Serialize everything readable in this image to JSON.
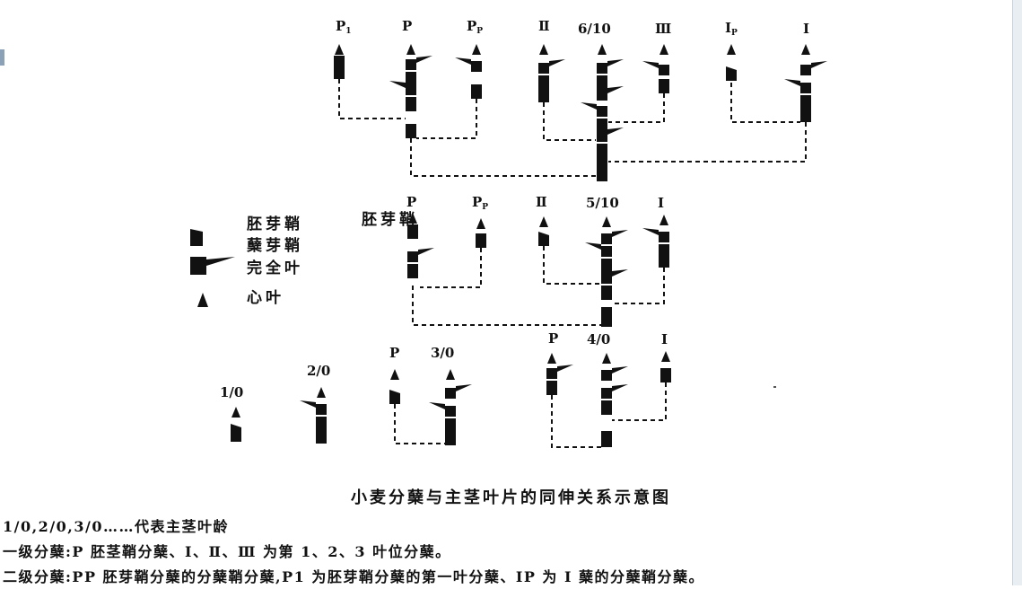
{
  "diagram": {
    "group1_labels": [
      {
        "main": "P",
        "sub": "1"
      },
      {
        "main": "P",
        "sub": ""
      },
      {
        "main": "P",
        "sub": "P"
      },
      {
        "main": "Ⅱ",
        "sub": ""
      },
      {
        "main": "6/10",
        "sub": ""
      },
      {
        "main": "Ⅲ",
        "sub": ""
      },
      {
        "main": "Ⅰ",
        "sub": "P"
      },
      {
        "main": "Ⅰ",
        "sub": ""
      }
    ],
    "group2_labels": [
      {
        "main": "P",
        "sub": ""
      },
      {
        "main": "P",
        "sub": "P"
      },
      {
        "main": "Ⅱ",
        "sub": ""
      },
      {
        "main": "5/10",
        "sub": ""
      },
      {
        "main": "Ⅰ",
        "sub": ""
      }
    ],
    "group2_overlay": "胚芽鞘",
    "group3_labels": [
      "1/0",
      "2/0",
      "P",
      "3/0",
      "P",
      "4/0",
      "Ⅰ"
    ]
  },
  "legend": {
    "items": [
      "胚芽鞘",
      "蘖芽鞘",
      "完全叶",
      "心叶"
    ]
  },
  "caption": "小麦分蘖与主茎叶片的同伸关系示意图",
  "notes": [
    "1/0,2/0,3/0……代表主茎叶龄",
    "一级分蘖:P 胚茎鞘分蘖、Ⅰ、Ⅱ、Ⅲ 为第 1、2、3 叶位分蘖。",
    "二级分蘖:PP 胚芽鞘分蘖的分蘖鞘分蘖,P1 为胚芽鞘分蘖的第一叶分蘖、ⅠP 为 Ⅰ 蘖的分蘖鞘分蘖。"
  ]
}
